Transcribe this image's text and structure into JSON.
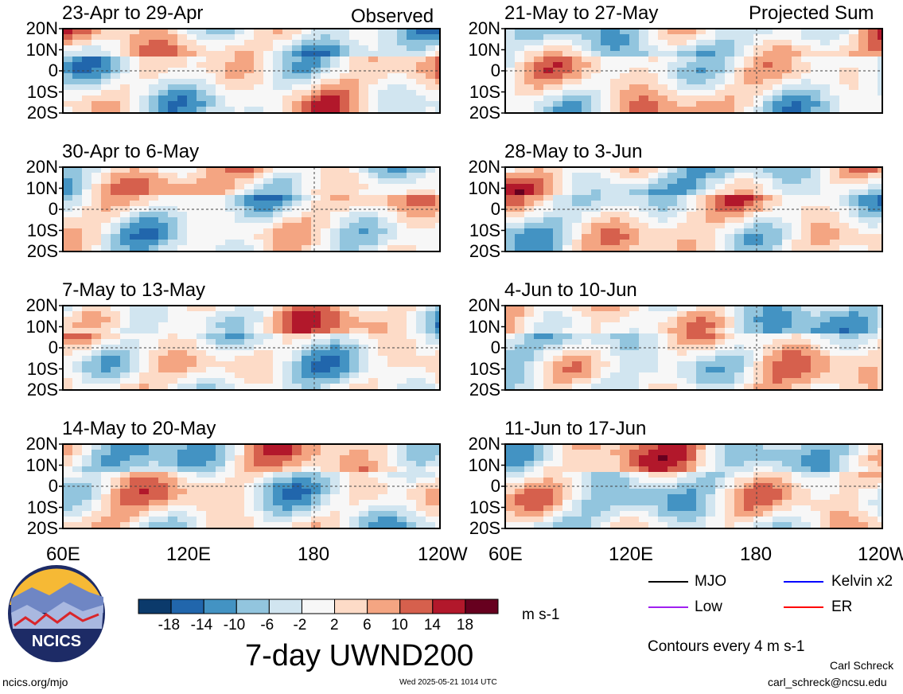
{
  "chart_data": {
    "type": "heatmap",
    "title": "7-day UWND200",
    "units": "m s-1",
    "observed_label": "Observed",
    "projected_label": "Projected Sum",
    "columns": [
      {
        "label": "Observed",
        "panels": [
          {
            "period": "23-Apr to 29-Apr"
          },
          {
            "period": "30-Apr to 6-May"
          },
          {
            "period": "7-May to 13-May"
          },
          {
            "period": "14-May to 20-May"
          }
        ]
      },
      {
        "label": "Projected Sum",
        "panels": [
          {
            "period": "21-May to 27-May"
          },
          {
            "period": "28-May to 3-Jun"
          },
          {
            "period": "4-Jun to 10-Jun"
          },
          {
            "period": "11-Jun to 17-Jun"
          }
        ]
      }
    ],
    "lat_ticks": [
      "20N",
      "10N",
      "0",
      "10S",
      "20S"
    ],
    "lon_ticks": [
      "60E",
      "120E",
      "180",
      "120W"
    ],
    "colorbar": {
      "ticks": [
        "-18",
        "-14",
        "-10",
        "-6",
        "-2",
        "2",
        "6",
        "10",
        "14",
        "18"
      ],
      "colors": [
        "#0b3a6b",
        "#2166ac",
        "#4393c3",
        "#92c5de",
        "#d1e5f0",
        "#f7f7f7",
        "#fddbc7",
        "#f4a582",
        "#d6604d",
        "#b2182b",
        "#67001f"
      ]
    },
    "legend": [
      {
        "label": "MJO",
        "color": "#000000"
      },
      {
        "label": "Kelvin x2",
        "color": "#0000ff"
      },
      {
        "label": "Low",
        "color": "#a020f0"
      },
      {
        "label": "ER",
        "color": "#ff0000"
      }
    ],
    "contour_note": "Contours every 4 m s-1"
  },
  "logo_text": "NCICS",
  "website": "ncics.org/mjo",
  "timestamp": "Wed 2025-05-21 1014 UTC",
  "author": "Carl Schreck",
  "email": "carl_schreck@ncsu.edu",
  "icons": {
    "logo": "ncics-mountain-logo"
  }
}
